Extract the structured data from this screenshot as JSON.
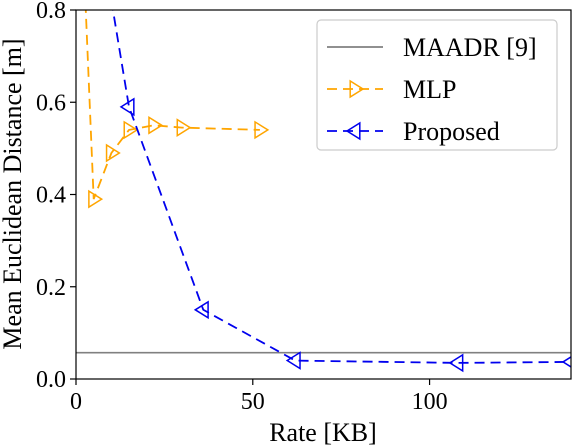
{
  "chart_data": {
    "type": "line",
    "xlabel": "Rate [KB]",
    "ylabel": "Mean Euclidean Distance [m]",
    "xlim": [
      0,
      140
    ],
    "ylim": [
      0,
      0.8
    ],
    "x_ticks": [
      0,
      50,
      100
    ],
    "y_ticks": [
      0.0,
      0.2,
      0.4,
      0.6,
      0.8
    ],
    "y_tick_labels": [
      "0.0",
      "0.2",
      "0.4",
      "0.6",
      "0.8"
    ],
    "legend_position": "top-right",
    "grid": false,
    "series": [
      {
        "name": "MAADR [9]",
        "color": "#808080",
        "style": "solid",
        "marker": "none",
        "baseline": 0.057
      },
      {
        "name": "MLP",
        "color": "#FFA500",
        "style": "dashed",
        "marker": "triangle-right",
        "x": [
          2.5,
          5,
          10,
          15,
          22,
          30,
          52
        ],
        "y": [
          0.85,
          0.39,
          0.49,
          0.54,
          0.55,
          0.545,
          0.54
        ],
        "marked": [
          false,
          true,
          true,
          true,
          true,
          true,
          true
        ]
      },
      {
        "name": "Proposed",
        "color": "#0000EE",
        "style": "dashed",
        "marker": "triangle-left",
        "x": [
          10,
          15,
          36,
          62,
          108,
          140
        ],
        "y": [
          0.82,
          0.59,
          0.15,
          0.04,
          0.035,
          0.037
        ],
        "marked": [
          false,
          true,
          true,
          true,
          true,
          true
        ]
      }
    ]
  }
}
